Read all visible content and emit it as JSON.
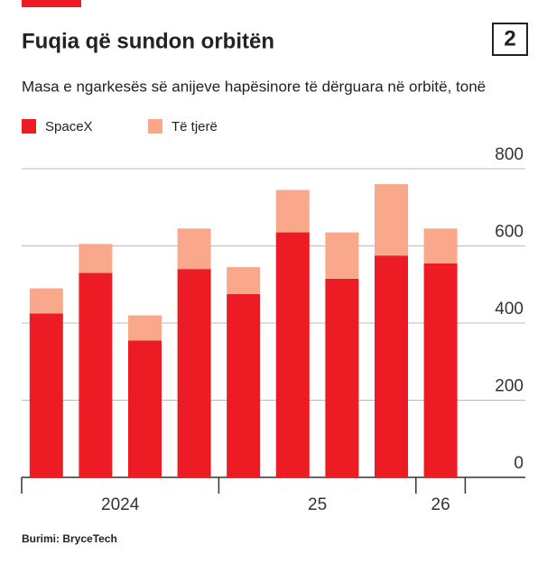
{
  "chart_data": {
    "type": "stacked_bar",
    "title": "Fuqia që sundon orbitën",
    "badge": "2",
    "subtitle": "Masa e ngarkesës së anijeve hapësinore të dërguara në orbitë, tonë",
    "groups": [
      {
        "label": "2024",
        "count": 4
      },
      {
        "label": "25",
        "count": 4
      },
      {
        "label": "26",
        "count": 1
      }
    ],
    "series": [
      {
        "name": "SpaceX",
        "color": "#ed1c24",
        "values": [
          425,
          530,
          355,
          540,
          475,
          635,
          515,
          575,
          555
        ]
      },
      {
        "name": "Të tjerë",
        "color": "#f9a88b",
        "values": [
          65,
          75,
          65,
          105,
          70,
          110,
          120,
          185,
          90
        ]
      }
    ],
    "ylim": [
      0,
      800
    ],
    "yticks": [
      0,
      200,
      400,
      600,
      800
    ],
    "grid": true,
    "source": "Burimi: BryceTech"
  }
}
